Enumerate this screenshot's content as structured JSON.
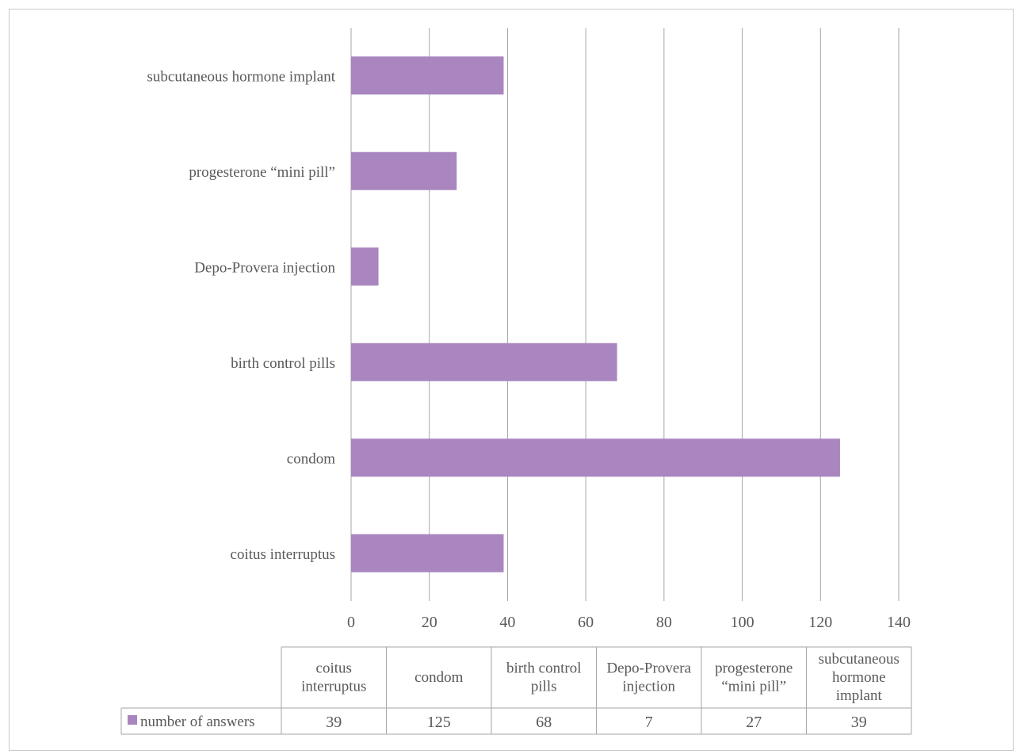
{
  "colors": {
    "bar": "#a986c0",
    "grid": "#a6a6a6",
    "axis": "#a6a6a6",
    "text": "#595959",
    "table_border": "#a6a6a6"
  },
  "chart_data": {
    "type": "bar",
    "orientation": "horizontal",
    "categories": [
      "coitus interruptus",
      "condom",
      "birth control pills",
      "Depo-Provera injection",
      "progesterone “mini pill”",
      "subcutaneous hormone implant"
    ],
    "series": [
      {
        "name": "number of answers",
        "values": [
          39,
          125,
          68,
          7,
          27,
          39
        ]
      }
    ],
    "xlim": [
      0,
      140
    ],
    "xticks": [
      "0",
      "20",
      "40",
      "60",
      "80",
      "100",
      "120",
      "140"
    ],
    "grid": true,
    "data_table": {
      "headers": [
        [
          "coitus",
          "interruptus"
        ],
        [
          "condom"
        ],
        [
          "birth control",
          "pills"
        ],
        [
          "Depo-Provera",
          "injection"
        ],
        [
          "progesterone",
          "“mini pill”"
        ],
        [
          "subcutaneous",
          "hormone",
          "implant"
        ]
      ],
      "row_label": "number of answers",
      "row_values": [
        "39",
        "125",
        "68",
        "7",
        "27",
        "39"
      ]
    }
  }
}
